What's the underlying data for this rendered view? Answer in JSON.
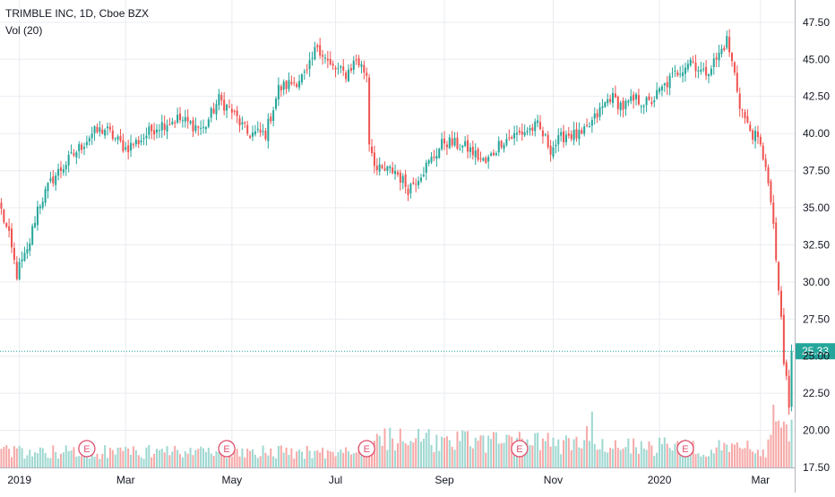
{
  "header": {
    "symbol_line": "TRIMBLE INC, 1D, Cboe BZX",
    "volume_line": "Vol (20)"
  },
  "colors": {
    "up": "#26a69a",
    "down": "#ef5350",
    "volume_up": "#9fd8d1",
    "volume_down": "#f6a9a8",
    "grid": "#e9ecf1",
    "price_line": "#26a69a",
    "earnings_marker": "#e0506e",
    "axis_text": "#131722"
  },
  "chart_data": {
    "type": "candlestick",
    "title": "TRIMBLE INC, 1D, Cboe BZX",
    "subtitle": "Vol (20)",
    "ylim": [
      17.5,
      49.0
    ],
    "y_ticks": [
      "47.50",
      "45.00",
      "42.50",
      "40.00",
      "37.50",
      "35.00",
      "32.50",
      "30.00",
      "27.50",
      "25.00",
      "22.50",
      "20.00",
      "17.50"
    ],
    "x_ticks": [
      "2019",
      "Mar",
      "May",
      "Jul",
      "Sep",
      "Nov",
      "2020",
      "Mar"
    ],
    "x_tick_bar_index": [
      7,
      48,
      89,
      129,
      171,
      213,
      254,
      293
    ],
    "n_bars": 306,
    "last_price": "25.33",
    "earnings_markers": [
      "E",
      "E",
      "E",
      "E",
      "E"
    ],
    "earnings_bar_index": [
      33,
      87,
      141,
      200,
      264
    ],
    "grid": true,
    "price_anchors": [
      [
        0,
        34.8
      ],
      [
        3,
        33.0
      ],
      [
        6,
        30.5
      ],
      [
        7,
        31.0
      ],
      [
        10,
        32.0
      ],
      [
        14,
        35.0
      ],
      [
        20,
        37.0
      ],
      [
        25,
        38.0
      ],
      [
        30,
        39.0
      ],
      [
        35,
        40.0
      ],
      [
        40,
        40.3
      ],
      [
        48,
        39.0
      ],
      [
        53,
        39.5
      ],
      [
        60,
        40.5
      ],
      [
        68,
        41.0
      ],
      [
        78,
        40.3
      ],
      [
        84,
        42.3
      ],
      [
        89,
        41.5
      ],
      [
        95,
        40.0
      ],
      [
        102,
        40.0
      ],
      [
        107,
        43.0
      ],
      [
        113,
        43.5
      ],
      [
        118,
        44.0
      ],
      [
        122,
        46.0
      ],
      [
        127,
        44.5
      ],
      [
        133,
        44.0
      ],
      [
        137,
        45.0
      ],
      [
        141,
        44.0
      ],
      [
        142,
        39.5
      ],
      [
        145,
        37.5
      ],
      [
        152,
        37.5
      ],
      [
        157,
        36.3
      ],
      [
        165,
        38.0
      ],
      [
        171,
        39.5
      ],
      [
        180,
        39.0
      ],
      [
        187,
        38.0
      ],
      [
        193,
        39.5
      ],
      [
        200,
        40.0
      ],
      [
        207,
        40.5
      ],
      [
        212,
        39.0
      ],
      [
        218,
        40.0
      ],
      [
        224,
        39.8
      ],
      [
        229,
        41.0
      ],
      [
        235,
        42.5
      ],
      [
        240,
        41.8
      ],
      [
        245,
        42.3
      ],
      [
        250,
        42.0
      ],
      [
        255,
        43.0
      ],
      [
        260,
        44.0
      ],
      [
        266,
        45.0
      ],
      [
        271,
        44.0
      ],
      [
        276,
        45.0
      ],
      [
        280,
        46.3
      ],
      [
        283,
        44.0
      ],
      [
        285,
        42.0
      ],
      [
        288,
        40.5
      ],
      [
        292,
        39.5
      ],
      [
        295,
        38.0
      ],
      [
        297,
        35.0
      ],
      [
        298,
        34.0
      ],
      [
        300,
        29.0
      ],
      [
        301,
        27.5
      ],
      [
        302,
        24.5
      ],
      [
        303,
        23.5
      ],
      [
        304,
        21.5
      ],
      [
        305,
        25.33
      ]
    ],
    "volume_level_profile": [
      [
        0,
        0.3
      ],
      [
        140,
        0.3
      ],
      [
        143,
        0.55
      ],
      [
        295,
        0.35
      ],
      [
        298,
        0.6
      ],
      [
        305,
        0.9
      ]
    ]
  }
}
